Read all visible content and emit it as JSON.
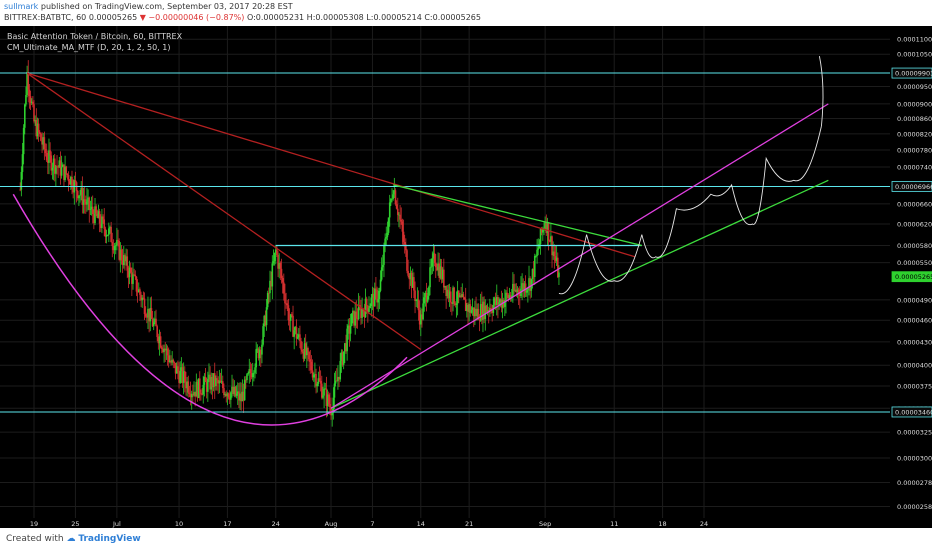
{
  "header": {
    "author": "sullmark",
    "published": "published on TradingView.com, September 03, 2017 20:28 EST",
    "symbol": "BITTREX:BATBTC, 60",
    "last": "0.00005265",
    "arrow": "▼",
    "change": "−0.00000046 (−0.87%)",
    "ohlc": "O:0.00005231 H:0.00005308 L:0.00005214 C:0.00005265"
  },
  "legend": {
    "pair": "Basic Attention Token / Bitcoin, 60, BITTREX",
    "indicator": "CM_Ultimate_MA_MTF (D, 20, 1, 2, 50, 1)"
  },
  "footer": {
    "created_with": "Created with",
    "brand": "TradingView"
  },
  "colors": {
    "background": "#000000",
    "up": "#2fd12f",
    "down": "#d43030",
    "magenta": "#e040e0",
    "green": "#3ddc3d",
    "cyan": "#5ce6ec",
    "red_trend": "#b32020",
    "white_path": "#e6e6e6",
    "axis_text": "#dddddd"
  },
  "chart_data": {
    "type": "candlestick",
    "x_ticks": [
      {
        "label": "19",
        "date": "2017-06-19"
      },
      {
        "label": "25",
        "date": "2017-06-25"
      },
      {
        "label": "Jul",
        "date": "2017-07-01"
      },
      {
        "label": "10",
        "date": "2017-07-10"
      },
      {
        "label": "17",
        "date": "2017-07-17"
      },
      {
        "label": "24",
        "date": "2017-07-24"
      },
      {
        "label": "Aug",
        "date": "2017-08-01"
      },
      {
        "label": "7",
        "date": "2017-08-07"
      },
      {
        "label": "14",
        "date": "2017-08-14"
      },
      {
        "label": "21",
        "date": "2017-08-21"
      },
      {
        "label": "Sep",
        "date": "2017-09-01"
      },
      {
        "label": "11",
        "date": "2017-09-11"
      },
      {
        "label": "18",
        "date": "2017-09-18"
      },
      {
        "label": "24",
        "date": "2017-09-24"
      }
    ],
    "y_ticks": [
      "0.00011000",
      "0.00010500",
      "0.00009500",
      "0.00009000",
      "0.00008600",
      "0.00008200",
      "0.00007800",
      "0.00007400",
      "0.00006600",
      "0.00006200",
      "0.00005800",
      "0.00005500",
      "0.00004900",
      "0.00004600",
      "0.00004300",
      "0.00004000",
      "0.00003750",
      "0.00003500",
      "0.00003250",
      "0.00003000",
      "0.00002780",
      "0.00002580"
    ],
    "y_scale": "logarithmic",
    "ylim": [
      2.49e-05,
      0.0001146
    ],
    "price_labels": [
      {
        "value": "0.00009903",
        "role": "resistance"
      },
      {
        "value": "0.00006966",
        "role": "resistance"
      },
      {
        "value": "0.00005265",
        "role": "last"
      },
      {
        "value": "0.00003460",
        "role": "support"
      }
    ],
    "price_series_approx": [
      [
        "2017-06-17",
        6.9e-05
      ],
      [
        "2017-06-18",
        9.9e-05
      ],
      [
        "2017-06-19",
        8.5e-05
      ],
      [
        "2017-06-21",
        7.6e-05
      ],
      [
        "2017-06-24",
        7.2e-05
      ],
      [
        "2017-06-27",
        6.5e-05
      ],
      [
        "2017-06-30",
        6e-05
      ],
      [
        "2017-07-03",
        5.3e-05
      ],
      [
        "2017-07-06",
        4.6e-05
      ],
      [
        "2017-07-09",
        4e-05
      ],
      [
        "2017-07-12",
        3.7e-05
      ],
      [
        "2017-07-15",
        3.8e-05
      ],
      [
        "2017-07-19",
        3.6e-05
      ],
      [
        "2017-07-22",
        4.3e-05
      ],
      [
        "2017-07-24",
        5.7e-05
      ],
      [
        "2017-07-26",
        4.6e-05
      ],
      [
        "2017-07-29",
        4e-05
      ],
      [
        "2017-08-01",
        3.5e-05
      ],
      [
        "2017-08-04",
        4.6e-05
      ],
      [
        "2017-08-08",
        5e-05
      ],
      [
        "2017-08-10",
        7e-05
      ],
      [
        "2017-08-12",
        5.5e-05
      ],
      [
        "2017-08-14",
        4.6e-05
      ],
      [
        "2017-08-16",
        5.6e-05
      ],
      [
        "2017-08-18",
        5e-05
      ],
      [
        "2017-08-22",
        4.7e-05
      ],
      [
        "2017-08-26",
        4.9e-05
      ],
      [
        "2017-08-30",
        5.2e-05
      ],
      [
        "2017-09-01",
        6.3e-05
      ],
      [
        "2017-09-03",
        5.27e-05
      ]
    ],
    "drawings": [
      {
        "type": "horizontal",
        "value": 9.903e-05,
        "color": "cyan"
      },
      {
        "type": "horizontal",
        "value": 6.966e-05,
        "color": "cyan"
      },
      {
        "type": "horizontal",
        "value": 3.46e-05,
        "color": "cyan"
      },
      {
        "type": "segment",
        "from": [
          "2017-07-24",
          5.8e-05
        ],
        "to": [
          "2017-09-15",
          5.8e-05
        ],
        "color": "cyan"
      },
      {
        "type": "segment",
        "from": [
          "2017-06-18",
          9.9e-05
        ],
        "to": [
          "2017-09-14",
          5.6e-05
        ],
        "color": "red"
      },
      {
        "type": "segment",
        "from": [
          "2017-06-18",
          9.9e-05
        ],
        "to": [
          "2017-08-14",
          4.2e-05
        ],
        "color": "red"
      },
      {
        "type": "segment",
        "from": [
          "2017-08-10",
          7e-05
        ],
        "to": [
          "2017-09-15",
          5.8e-05
        ],
        "color": "green"
      },
      {
        "type": "segment",
        "from": [
          "2017-08-01",
          3.5e-05
        ],
        "to": [
          "2017-10-12",
          7.1e-05
        ],
        "color": "green"
      },
      {
        "type": "segment",
        "from": [
          "2017-08-01",
          3.5e-05
        ],
        "to": [
          "2017-10-12",
          9e-05
        ],
        "color": "magenta"
      },
      {
        "type": "arc",
        "from": [
          "2017-06-16",
          6.8e-05
        ],
        "bottom": [
          "2017-07-15",
          3.45e-05
        ],
        "to": [
          "2017-08-12",
          4.1e-05
        ],
        "color": "magenta"
      },
      {
        "type": "projection",
        "points": [
          [
            "2017-09-03",
            5e-05
          ],
          [
            "2017-09-07",
            6e-05
          ],
          [
            "2017-09-11",
            5.2e-05
          ],
          [
            "2017-09-15",
            6e-05
          ],
          [
            "2017-09-17",
            5.6e-05
          ],
          [
            "2017-09-20",
            6.5e-05
          ],
          [
            "2017-09-25",
            6.8e-05
          ],
          [
            "2017-09-28",
            7e-05
          ],
          [
            "2017-10-01",
            6.2e-05
          ],
          [
            "2017-10-03",
            7.6e-05
          ],
          [
            "2017-10-07",
            7.1e-05
          ],
          [
            "2017-10-11",
            8.4e-05
          ]
        ],
        "color": "white"
      }
    ]
  }
}
